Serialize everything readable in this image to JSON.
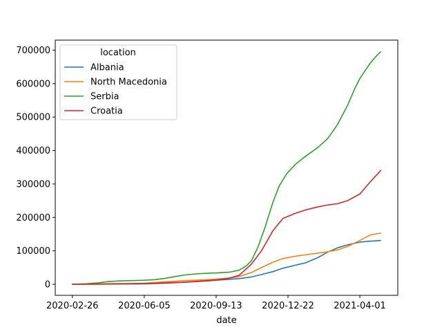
{
  "chart_data": {
    "type": "line",
    "title": "",
    "xlabel": "date",
    "ylabel": "",
    "x_range": [
      "2020-02-26",
      "2021-04-30"
    ],
    "ylim": [
      -33000,
      730000
    ],
    "grid": false,
    "legend": {
      "title": "location",
      "placement": "top-left"
    },
    "x_ticks": [
      "2020-02-26",
      "2020-06-05",
      "2020-09-13",
      "2020-12-22",
      "2021-04-01"
    ],
    "y_ticks": [
      0,
      100000,
      200000,
      300000,
      400000,
      500000,
      600000,
      700000
    ],
    "series": [
      {
        "name": "Albania",
        "color": "#1f77b4",
        "points": [
          [
            "2020-02-26",
            0
          ],
          [
            "2020-04-01",
            300
          ],
          [
            "2020-05-01",
            800
          ],
          [
            "2020-06-05",
            1200
          ],
          [
            "2020-07-01",
            3000
          ],
          [
            "2020-08-01",
            6000
          ],
          [
            "2020-09-01",
            10000
          ],
          [
            "2020-09-13",
            12000
          ],
          [
            "2020-10-01",
            15000
          ],
          [
            "2020-10-15",
            17000
          ],
          [
            "2020-11-01",
            22000
          ],
          [
            "2020-11-15",
            29000
          ],
          [
            "2020-12-01",
            38000
          ],
          [
            "2020-12-15",
            48000
          ],
          [
            "2021-01-01",
            57000
          ],
          [
            "2021-01-15",
            64000
          ],
          [
            "2021-02-01",
            79000
          ],
          [
            "2021-02-15",
            96000
          ],
          [
            "2021-03-01",
            109000
          ],
          [
            "2021-03-15",
            118000
          ],
          [
            "2021-04-01",
            126000
          ],
          [
            "2021-04-15",
            129000
          ],
          [
            "2021-04-30",
            131000
          ]
        ]
      },
      {
        "name": "North Macedonia",
        "color": "#ff7f0e",
        "points": [
          [
            "2020-02-26",
            0
          ],
          [
            "2020-04-01",
            500
          ],
          [
            "2020-05-01",
            1500
          ],
          [
            "2020-06-05",
            3000
          ],
          [
            "2020-07-01",
            7000
          ],
          [
            "2020-08-01",
            11000
          ],
          [
            "2020-09-01",
            14000
          ],
          [
            "2020-09-13",
            15500
          ],
          [
            "2020-10-01",
            19000
          ],
          [
            "2020-10-15",
            23000
          ],
          [
            "2020-11-01",
            35000
          ],
          [
            "2020-11-15",
            50000
          ],
          [
            "2020-12-01",
            66000
          ],
          [
            "2020-12-15",
            77000
          ],
          [
            "2021-01-01",
            84000
          ],
          [
            "2021-01-15",
            88000
          ],
          [
            "2021-02-01",
            93000
          ],
          [
            "2021-02-15",
            97000
          ],
          [
            "2021-03-01",
            103000
          ],
          [
            "2021-03-15",
            113000
          ],
          [
            "2021-04-01",
            131000
          ],
          [
            "2021-04-15",
            147000
          ],
          [
            "2021-04-30",
            153000
          ]
        ]
      },
      {
        "name": "Serbia",
        "color": "#2ca02c",
        "points": [
          [
            "2020-02-26",
            0
          ],
          [
            "2020-03-15",
            1500
          ],
          [
            "2020-04-01",
            4000
          ],
          [
            "2020-04-15",
            8000
          ],
          [
            "2020-05-01",
            10000
          ],
          [
            "2020-06-05",
            12000
          ],
          [
            "2020-06-20",
            14000
          ],
          [
            "2020-07-05",
            18000
          ],
          [
            "2020-07-20",
            24000
          ],
          [
            "2020-08-01",
            28000
          ],
          [
            "2020-08-15",
            31000
          ],
          [
            "2020-09-01",
            33000
          ],
          [
            "2020-09-13",
            34000
          ],
          [
            "2020-10-01",
            36000
          ],
          [
            "2020-10-15",
            42000
          ],
          [
            "2020-10-25",
            55000
          ],
          [
            "2020-11-01",
            70000
          ],
          [
            "2020-11-10",
            110000
          ],
          [
            "2020-11-20",
            170000
          ],
          [
            "2020-12-01",
            245000
          ],
          [
            "2020-12-10",
            295000
          ],
          [
            "2020-12-20",
            330000
          ],
          [
            "2021-01-01",
            358000
          ],
          [
            "2021-01-15",
            382000
          ],
          [
            "2021-02-01",
            408000
          ],
          [
            "2021-02-15",
            435000
          ],
          [
            "2021-03-01",
            478000
          ],
          [
            "2021-03-15",
            535000
          ],
          [
            "2021-03-25",
            585000
          ],
          [
            "2021-04-01",
            615000
          ],
          [
            "2021-04-15",
            660000
          ],
          [
            "2021-04-25",
            685000
          ],
          [
            "2021-04-30",
            695000
          ]
        ]
      },
      {
        "name": "Croatia",
        "color": "#d62728",
        "points": [
          [
            "2020-02-26",
            0
          ],
          [
            "2020-04-01",
            1000
          ],
          [
            "2020-05-01",
            2000
          ],
          [
            "2020-06-05",
            2300
          ],
          [
            "2020-07-01",
            4000
          ],
          [
            "2020-08-01",
            6500
          ],
          [
            "2020-09-01",
            11000
          ],
          [
            "2020-09-13",
            13000
          ],
          [
            "2020-10-01",
            18000
          ],
          [
            "2020-10-15",
            27000
          ],
          [
            "2020-11-01",
            60000
          ],
          [
            "2020-11-15",
            100000
          ],
          [
            "2020-12-01",
            160000
          ],
          [
            "2020-12-15",
            197000
          ],
          [
            "2021-01-01",
            212000
          ],
          [
            "2021-01-15",
            222000
          ],
          [
            "2021-02-01",
            231000
          ],
          [
            "2021-02-15",
            237000
          ],
          [
            "2021-03-01",
            241000
          ],
          [
            "2021-03-15",
            250000
          ],
          [
            "2021-04-01",
            270000
          ],
          [
            "2021-04-15",
            305000
          ],
          [
            "2021-04-30",
            340000
          ]
        ]
      }
    ]
  }
}
